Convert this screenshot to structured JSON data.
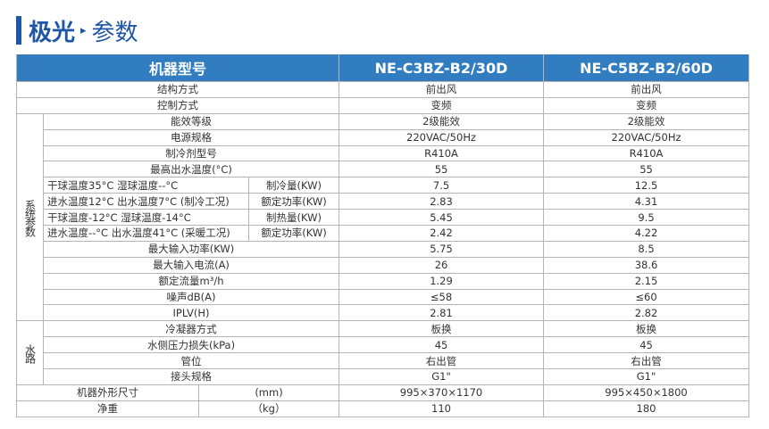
{
  "title": {
    "brand": "极光",
    "arrow": "▸",
    "section": "参数"
  },
  "colors": {
    "accent": "#1f56a8",
    "header_bg": "#317dc0"
  },
  "header": {
    "label": "机器型号",
    "models": [
      "NE-C3BZ-B2/30D",
      "NE-C5BZ-B2/60D"
    ]
  },
  "top_rows": [
    {
      "label": "结构方式",
      "values": [
        "前出风",
        "前出风"
      ]
    },
    {
      "label": "控制方式",
      "values": [
        "变频",
        "变频"
      ]
    }
  ],
  "system": {
    "group_label": "系统参数",
    "rows": [
      {
        "label": "能效等级",
        "values": [
          "2级能效",
          "2级能效"
        ]
      },
      {
        "label": "电源规格",
        "values": [
          "220VAC/50Hz",
          "220VAC/50Hz"
        ]
      },
      {
        "label": "制冷剂型号",
        "values": [
          "R410A",
          "R410A"
        ]
      },
      {
        "label": "最高出水温度(°C)",
        "values": [
          "55",
          "55"
        ]
      },
      {
        "condition": "干球温度35°C  湿球温度--°C",
        "label": "制冷量(KW)",
        "values": [
          "7.5",
          "12.5"
        ]
      },
      {
        "condition": "进水温度12°C  出水温度7°C (制冷工况)",
        "label": "额定功率(KW)",
        "values": [
          "2.83",
          "4.31"
        ]
      },
      {
        "condition": "干球温度-12°C 湿球温度-14°C",
        "label": "制热量(KW)",
        "values": [
          "5.45",
          "9.5"
        ]
      },
      {
        "condition": "进水温度--°C 出水温度41°C (采暖工况)",
        "label": "额定功率(KW)",
        "values": [
          "2.42",
          "4.22"
        ]
      },
      {
        "label": "最大输入功率(KW)",
        "values": [
          "5.75",
          "8.5"
        ]
      },
      {
        "label": "最大输入电流(A)",
        "values": [
          "26",
          "38.6"
        ]
      },
      {
        "label": "额定流量m³/h",
        "values": [
          "1.29",
          "2.15"
        ]
      },
      {
        "label": "噪声dB(A)",
        "values": [
          "≤58",
          "≤60"
        ]
      },
      {
        "label": "IPLV(H)",
        "values": [
          "2.81",
          "2.82"
        ]
      }
    ]
  },
  "water": {
    "group_label": "水路",
    "rows": [
      {
        "label": "冷凝器方式",
        "values": [
          "板换",
          "板换"
        ]
      },
      {
        "label": "水侧压力损失(kPa)",
        "values": [
          "45",
          "45"
        ]
      },
      {
        "label": "管位",
        "values": [
          "右出管",
          "右出管"
        ]
      },
      {
        "label": "接头规格",
        "values": [
          "G1\"",
          "G1\""
        ]
      }
    ]
  },
  "bottom_rows": [
    {
      "label": "机器外形尺寸",
      "unit": "(mm)",
      "values": [
        "995×370×1170",
        "995×450×1800"
      ]
    },
    {
      "label": "净重",
      "unit": "（kg）",
      "values": [
        "110",
        "180"
      ]
    }
  ]
}
